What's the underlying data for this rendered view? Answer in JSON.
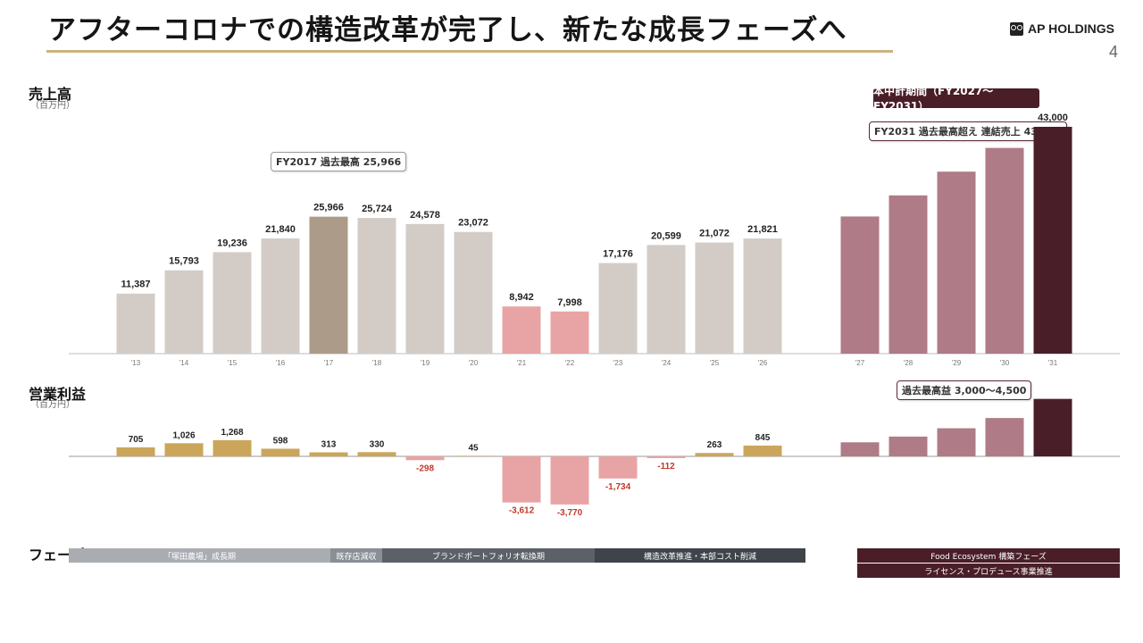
{
  "slide": {
    "title": "アフターコロナでの構造改革が完了し、新たな成長フェーズへ",
    "brand": "AP HOLDINGS",
    "page_number": "4",
    "accent_color": "#c9b380"
  },
  "labels": {
    "sales_title": "売上高",
    "sales_unit": "（百万円）",
    "op_title": "営業利益",
    "op_unit": "（百万円）",
    "phase_title": "フェーズ",
    "plan_badge": "本中計期間（FY2027〜FY2031）",
    "note_fy2017": "FY2017 過去最高 25,966",
    "note_fy2031": "FY2031 過去最高超え 連結売上 43,000",
    "note_op": "過去最高益 3,000〜4,500"
  },
  "phases": [
    {
      "label": "「塚田農場」成長期",
      "color": "#a9adb2"
    },
    {
      "label": "既存店減収",
      "color": "#8a8f95"
    },
    {
      "label": "ブランドポートフォリオ転換期",
      "color": "#5c6167"
    },
    {
      "label": "構造改革推進・本部コスト削減",
      "color": "#3f444a"
    }
  ],
  "phases_future": [
    {
      "label": "Food Ecosystem 構築フェーズ"
    },
    {
      "label": "ライセンス・プロデュース事業推進"
    }
  ],
  "colors": {
    "past_bar": "#d3ccc6",
    "record_bar": "#ad9b89",
    "covid_bar": "#e8a4a4",
    "plan_bar": "#ae7b87",
    "final_bar": "#4a1e28",
    "profit_bar": "#cba65a",
    "loss_bar": "#e8a4a4",
    "loss_text": "#c0392b"
  },
  "chart_data": [
    {
      "type": "bar",
      "title": "売上高",
      "unit": "百万円",
      "categories": [
        "'13",
        "'14",
        "'15",
        "'16",
        "'17",
        "'18",
        "'19",
        "'20",
        "'21",
        "'22",
        "'23",
        "'24",
        "'25",
        "'26",
        "'27",
        "'28",
        "'29",
        "'30",
        "'31"
      ],
      "values": [
        11387,
        15793,
        19236,
        21840,
        25966,
        25724,
        24578,
        23072,
        8942,
        7998,
        17176,
        20599,
        21072,
        21821,
        26000,
        30000,
        34500,
        39000,
        43000
      ],
      "value_labels": [
        "11,387",
        "15,793",
        "19,236",
        "21,840",
        "25,966",
        "25,724",
        "24,578",
        "23,072",
        "8,942",
        "7,998",
        "17,176",
        "20,599",
        "21,072",
        "21,821",
        "",
        "",
        "",
        "",
        "43,000"
      ],
      "ylim": [
        0,
        45000
      ]
    },
    {
      "type": "bar",
      "title": "営業利益",
      "unit": "百万円",
      "categories": [
        "'13",
        "'14",
        "'15",
        "'16",
        "'17",
        "'18",
        "'19",
        "'20",
        "'21",
        "'22",
        "'23",
        "'24",
        "'25",
        "'26",
        "'27",
        "'28",
        "'29",
        "'30",
        "'31"
      ],
      "values": [
        705,
        1026,
        1268,
        598,
        313,
        330,
        -298,
        45,
        -3612,
        -3770,
        -1734,
        -112,
        263,
        845,
        1100,
        1550,
        2200,
        3000,
        4500
      ],
      "value_labels": [
        "705",
        "1,026",
        "1,268",
        "598",
        "313",
        "330",
        "-298",
        "45",
        "-3,612",
        "-3,770",
        "-1,734",
        "-112",
        "263",
        "845",
        "",
        "",
        "",
        "",
        ""
      ]
    }
  ]
}
